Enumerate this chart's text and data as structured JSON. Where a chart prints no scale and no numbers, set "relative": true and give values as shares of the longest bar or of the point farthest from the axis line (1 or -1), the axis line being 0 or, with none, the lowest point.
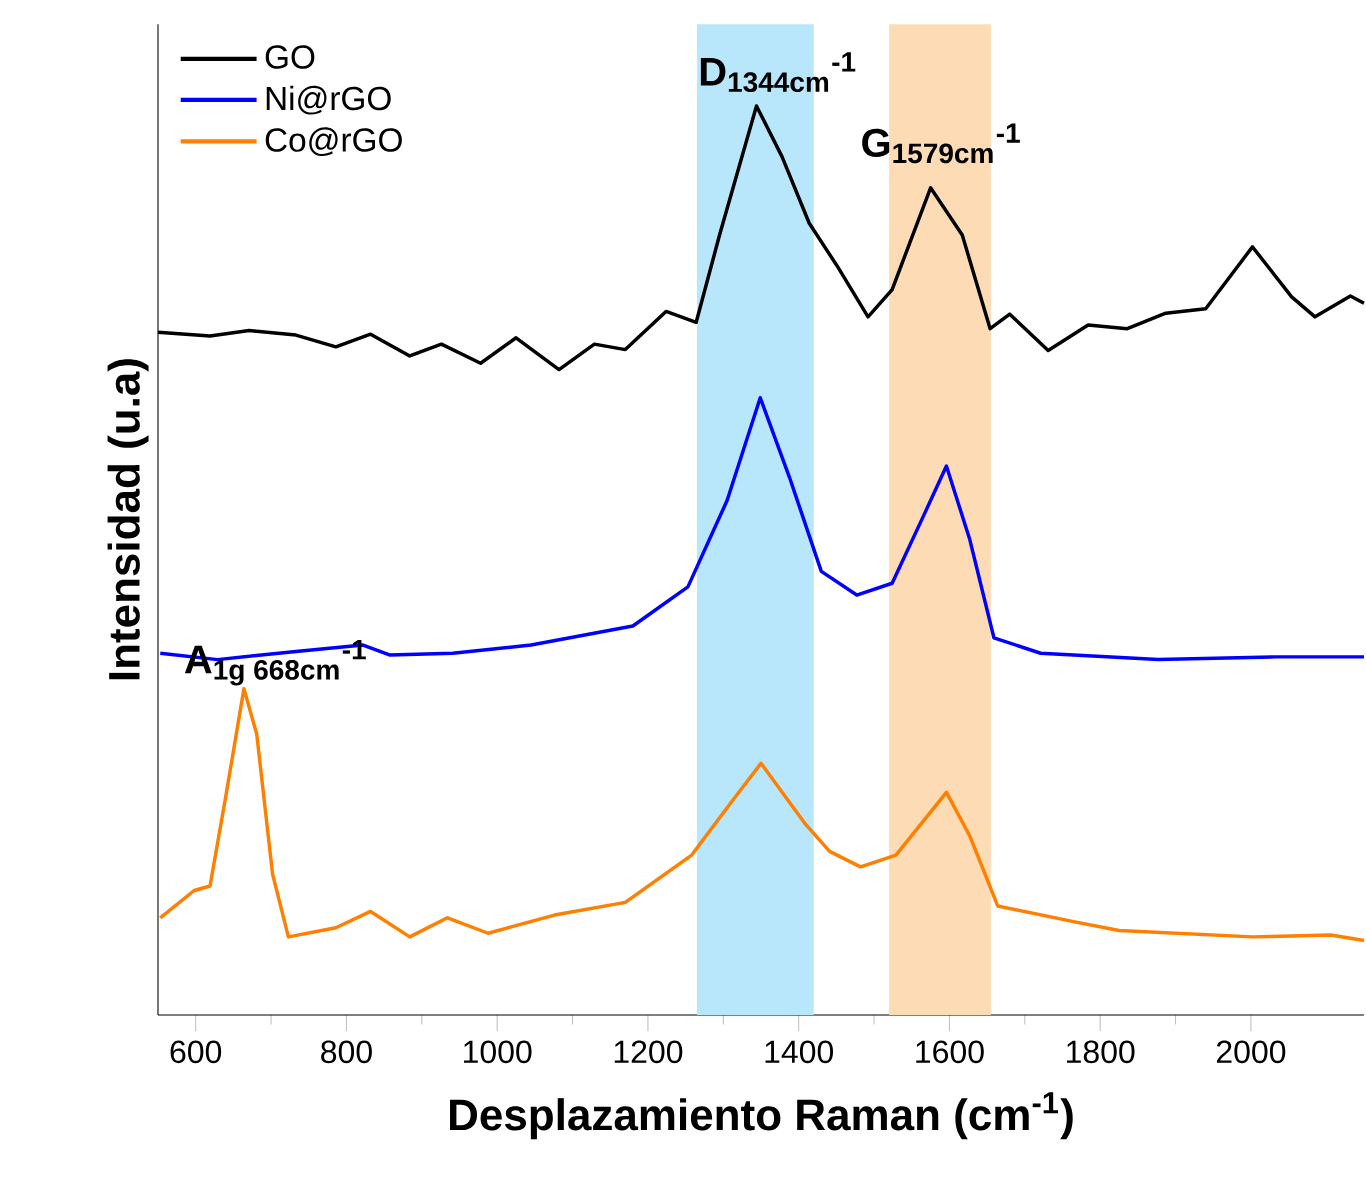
{
  "chart_data": {
    "type": "line",
    "relative": true,
    "xlabel": "Desplazamiento Raman (cm$^{-1}$)",
    "ylabel": "Intensidad (u.a)",
    "xlim": [
      550,
      2150
    ],
    "xticks": [
      600,
      800,
      1000,
      1200,
      1400,
      1600,
      1800,
      2000
    ],
    "legend": "top left",
    "tick_labels": "x",
    "grid": false,
    "bands": [
      {
        "axis": "x",
        "from": 1265,
        "to": 1420,
        "color": "#b8e6fa"
      },
      {
        "axis": "x",
        "from": 1520,
        "to": 1655,
        "color": "#fddcb5"
      }
    ],
    "annotations": [
      {
        "text": "\\textbf{D}_{\\textbf{1344cm}}{}^{\\textbf{-1}}",
        "x": 1344,
        "y": 1
      },
      {
        "text": "\\textbf{G}_{\\textbf{1579cm}}{}^{\\textbf{-1}}",
        "x": 1575,
        "y": 0.91
      },
      {
        "text": "\\textbf{A}_{\\textbf{1g 668cm}}{}^{\\textbf{-1}}",
        "x": 664,
        "y": 0.359
      }
    ],
    "series": [
      {
        "name": "GO",
        "color": "#000000",
        "x": [
          550,
          619,
          671,
          733,
          786,
          832,
          884,
          926,
          978,
          1025,
          1082,
          1129,
          1170,
          1224,
          1264,
          1295,
          1344,
          1378,
          1414,
          1451,
          1492,
          1524,
          1575,
          1617,
          1654,
          1680,
          1731,
          1784,
          1836,
          1887,
          1940,
          2002,
          2054,
          2085,
          2132,
          2150
        ],
        "values": [
          0.751,
          0.747,
          0.753,
          0.748,
          0.735,
          0.749,
          0.725,
          0.738,
          0.717,
          0.745,
          0.71,
          0.738,
          0.732,
          0.774,
          0.762,
          0.858,
          1,
          0.944,
          0.871,
          0.824,
          0.768,
          0.798,
          0.91,
          0.858,
          0.755,
          0.771,
          0.731,
          0.759,
          0.755,
          0.772,
          0.777,
          0.845,
          0.79,
          0.768,
          0.791,
          0.783
        ]
      },
      {
        "name": "Ni@rGO",
        "color": "#0000ff",
        "x": [
          553,
          629,
          733,
          822,
          858,
          941,
          1045,
          1180,
          1253,
          1305,
          1349,
          1388,
          1430,
          1477,
          1524,
          1565,
          1596,
          1627,
          1659,
          1721,
          1877,
          2033,
          2150
        ],
        "values": [
          0.398,
          0.391,
          0.4,
          0.407,
          0.396,
          0.398,
          0.407,
          0.428,
          0.471,
          0.566,
          0.679,
          0.591,
          0.488,
          0.462,
          0.475,
          0.548,
          0.604,
          0.523,
          0.415,
          0.398,
          0.391,
          0.394,
          0.394
        ]
      },
      {
        "name": "Co@rGO",
        "color": "#ff7f00",
        "x": [
          553,
          598,
          619,
          640,
          664,
          681,
          702,
          723,
          786,
          832,
          884,
          934,
          988,
          1076,
          1170,
          1258,
          1305,
          1350,
          1409,
          1441,
          1482,
          1529,
          1596,
          1627,
          1664,
          1763,
          1825,
          2002,
          2106,
          2150
        ],
        "values": [
          0.107,
          0.137,
          0.142,
          0.241,
          0.359,
          0.309,
          0.155,
          0.086,
          0.096,
          0.114,
          0.086,
          0.107,
          0.09,
          0.11,
          0.124,
          0.176,
          0.228,
          0.277,
          0.21,
          0.18,
          0.163,
          0.176,
          0.245,
          0.197,
          0.12,
          0.103,
          0.093,
          0.086,
          0.088,
          0.082
        ]
      }
    ]
  }
}
